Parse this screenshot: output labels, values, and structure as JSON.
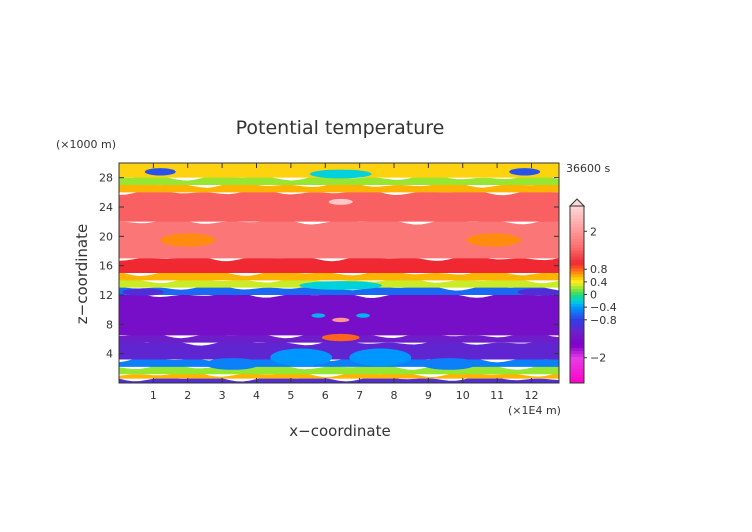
{
  "chart_data": {
    "type": "heatmap",
    "title": "Potential temperature",
    "time_label": "36600 s",
    "xlabel": "x−coordinate",
    "ylabel": "z−coordinate",
    "x_unit": "(×1E4 m)",
    "y_unit": "(×1000 m)",
    "xlim": [
      0,
      12.8
    ],
    "ylim": [
      0,
      30
    ],
    "x_ticks": [
      1,
      2,
      3,
      4,
      5,
      6,
      7,
      8,
      9,
      10,
      11,
      12
    ],
    "y_ticks": [
      4,
      8,
      12,
      16,
      20,
      24,
      28
    ],
    "colorbar": {
      "range": [
        -2.8,
        2.8
      ],
      "labels": [
        {
          "value": 2,
          "text": "2"
        },
        {
          "value": 0.8,
          "text": "0.8"
        },
        {
          "value": 0.4,
          "text": "0.4"
        },
        {
          "value": 0,
          "text": "0"
        },
        {
          "value": -0.4,
          "text": "−0.4"
        },
        {
          "value": -0.8,
          "text": "−0.8"
        },
        {
          "value": -2,
          "text": "−2"
        }
      ]
    },
    "layers": [
      {
        "z": [
          0,
          0.6
        ],
        "value": -1.0
      },
      {
        "z": [
          0.6,
          1.2
        ],
        "value": 0.6
      },
      {
        "z": [
          1.2,
          2.2
        ],
        "value": 0.2
      },
      {
        "z": [
          2.2,
          3.2
        ],
        "value": -0.5
      },
      {
        "z": [
          3.2,
          5.5
        ],
        "value": -1.1
      },
      {
        "z": [
          5.5,
          6.5
        ],
        "value": -1.2
      },
      {
        "z": [
          6.5,
          12.0
        ],
        "value": -1.4
      },
      {
        "z": [
          12.0,
          13.0
        ],
        "value": -0.6
      },
      {
        "z": [
          13.0,
          14.0
        ],
        "value": 0.3
      },
      {
        "z": [
          14.0,
          15.0
        ],
        "value": 0.6
      },
      {
        "z": [
          15.0,
          17.0
        ],
        "value": 1.0
      },
      {
        "z": [
          17.0,
          22.0
        ],
        "value": 1.6
      },
      {
        "z": [
          22.0,
          26.0
        ],
        "value": 1.4
      },
      {
        "z": [
          26.0,
          27.0
        ],
        "value": 0.6
      },
      {
        "z": [
          27.0,
          28.0
        ],
        "value": 0.2
      },
      {
        "z": [
          28.0,
          30.0
        ],
        "value": 0.5
      }
    ],
    "features": [
      {
        "x": 6.45,
        "z": 24.7,
        "rx": 0.35,
        "rz": 0.4,
        "value": 2.6
      },
      {
        "x": 6.45,
        "z": 28.5,
        "rx": 0.9,
        "rz": 0.6,
        "value": -0.2
      },
      {
        "x": 1.2,
        "z": 28.8,
        "rx": 0.45,
        "rz": 0.5,
        "value": -0.7
      },
      {
        "x": 11.8,
        "z": 28.8,
        "rx": 0.45,
        "rz": 0.5,
        "value": -0.7
      },
      {
        "x": 6.45,
        "z": 6.2,
        "rx": 0.55,
        "rz": 0.5,
        "value": 0.8
      },
      {
        "x": 6.45,
        "z": 8.6,
        "rx": 0.25,
        "rz": 0.3,
        "value": 2.0
      },
      {
        "x": 5.8,
        "z": 9.2,
        "rx": 0.2,
        "rz": 0.3,
        "value": -0.3
      },
      {
        "x": 7.1,
        "z": 9.2,
        "rx": 0.2,
        "rz": 0.3,
        "value": -0.3
      },
      {
        "x": 5.3,
        "z": 3.5,
        "rx": 0.9,
        "rz": 1.2,
        "value": -0.4
      },
      {
        "x": 7.6,
        "z": 3.5,
        "rx": 0.9,
        "rz": 1.2,
        "value": -0.4
      },
      {
        "x": 9.6,
        "z": 2.6,
        "rx": 0.8,
        "rz": 0.8,
        "value": -0.5
      },
      {
        "x": 3.3,
        "z": 2.6,
        "rx": 0.8,
        "rz": 0.8,
        "value": -0.5
      },
      {
        "x": 6.45,
        "z": 13.3,
        "rx": 1.2,
        "rz": 0.6,
        "value": -0.2
      },
      {
        "x": 2.0,
        "z": 19.5,
        "rx": 0.8,
        "rz": 0.9,
        "value": 0.7
      },
      {
        "x": 10.9,
        "z": 19.5,
        "rx": 0.8,
        "rz": 0.9,
        "value": 0.7
      },
      {
        "x": 0.7,
        "z": 12.4,
        "rx": 0.6,
        "rz": 0.5,
        "value": -1.0
      },
      {
        "x": 12.2,
        "z": 12.4,
        "rx": 0.6,
        "rz": 0.5,
        "value": -1.0
      }
    ]
  }
}
